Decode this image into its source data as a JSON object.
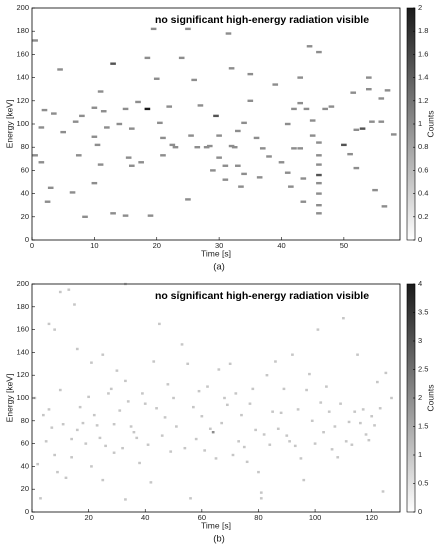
{
  "chart_data": [
    {
      "type": "heatmap",
      "caption": "(a)",
      "annotation": "no significant high-energy radiation visible",
      "xlabel": "Time [s]",
      "ylabel": "Energy [keV]",
      "clabel": "Counts",
      "xlim": [
        0,
        59
      ],
      "xticks": [
        0,
        10,
        20,
        30,
        40,
        50
      ],
      "ylim": [
        0,
        200
      ],
      "yticks": [
        0,
        20,
        40,
        60,
        80,
        100,
        120,
        140,
        160,
        180,
        200
      ],
      "clim": [
        0,
        2
      ],
      "cticks": [
        0,
        0.2,
        0.4,
        0.6,
        0.8,
        1,
        1.2,
        1.4,
        1.6,
        1.8,
        2
      ],
      "colorscale": [
        "#ffffff",
        "#1a1a1a"
      ],
      "x": [
        0.5,
        0.5,
        1.5,
        1.5,
        2,
        2.5,
        3,
        3.5,
        4.5,
        5,
        6.5,
        7,
        7.5,
        8,
        8.5,
        10,
        10,
        10,
        10.5,
        11,
        11,
        11.5,
        12,
        13,
        13,
        14,
        15,
        15,
        15.5,
        16,
        16,
        17,
        17.5,
        18.5,
        18.5,
        19,
        19.5,
        20,
        20.5,
        21,
        21,
        22,
        22.5,
        23,
        24,
        25,
        25,
        25.5,
        26,
        26.5,
        27,
        28,
        28.5,
        29,
        29.5,
        30,
        30,
        31,
        31,
        31.5,
        32,
        32,
        32.5,
        33,
        33,
        33.5,
        34,
        34,
        35,
        35,
        36,
        36.5,
        37,
        38,
        39,
        40,
        41,
        41,
        41.5,
        42,
        42,
        43,
        43,
        43,
        43.5,
        43.5,
        44,
        44.5,
        45,
        45,
        46,
        46,
        46,
        46,
        46,
        46,
        46,
        46,
        46,
        47,
        48,
        50,
        51,
        51.5,
        52,
        52,
        53,
        54,
        54,
        54.5,
        55,
        56,
        56,
        56.5,
        57,
        58
      ],
      "y": [
        172,
        73,
        97,
        67,
        112,
        33,
        45,
        109,
        147,
        93,
        41,
        102,
        73,
        107,
        20,
        114,
        89,
        49,
        82,
        128,
        65,
        111,
        97,
        152,
        23,
        100,
        113,
        21,
        71,
        96,
        64,
        119,
        67,
        113,
        157,
        21,
        182,
        139,
        101,
        88,
        73,
        115,
        82,
        80,
        157,
        182,
        35,
        90,
        138,
        80,
        116,
        80,
        81,
        60,
        107,
        71,
        90,
        64,
        52,
        178,
        148,
        81,
        80,
        94,
        64,
        46,
        101,
        57,
        143,
        120,
        88,
        54,
        79,
        72,
        134,
        67,
        100,
        58,
        46,
        113,
        79,
        118,
        140,
        79,
        53,
        33,
        113,
        167,
        103,
        90,
        162,
        84,
        73,
        65,
        56,
        49,
        40,
        30,
        23,
        113,
        115,
        82,
        74,
        127,
        95,
        62,
        96,
        140,
        130,
        102,
        43,
        122,
        102,
        29,
        129,
        91
      ],
      "values": [
        1,
        1,
        1,
        1,
        1,
        1,
        1,
        1,
        1,
        1,
        1,
        1,
        1,
        1,
        1,
        1,
        1,
        1,
        1,
        1,
        1,
        1,
        1,
        1.5,
        1,
        1,
        1,
        1,
        1,
        1,
        1,
        1,
        1,
        2,
        1,
        1,
        1,
        1,
        1,
        1,
        1,
        1,
        1,
        1,
        1,
        1,
        1,
        1,
        1,
        1,
        1,
        1,
        1,
        1,
        1.5,
        1,
        1,
        1,
        1,
        1,
        1,
        1,
        1,
        1,
        1,
        1,
        1,
        1,
        1,
        1,
        1,
        1,
        1,
        1,
        1,
        1,
        1,
        1,
        1,
        1,
        1,
        1,
        1,
        1,
        1,
        1,
        1,
        1,
        1,
        1,
        1,
        1,
        1,
        1,
        1.5,
        1,
        1,
        1,
        1,
        1,
        1,
        1.5,
        1,
        1,
        1,
        1,
        1.5,
        1,
        1,
        1,
        1,
        1,
        1,
        1,
        1,
        1
      ]
    },
    {
      "type": "heatmap",
      "caption": "(b)",
      "annotation": "no significant high-energy radiation visible",
      "xlabel": "Time [s]",
      "ylabel": "Energy [keV]",
      "clabel": "Counts",
      "xlim": [
        0,
        130
      ],
      "xticks": [
        0,
        20,
        40,
        60,
        80,
        100,
        120
      ],
      "ylim": [
        0,
        200
      ],
      "yticks": [
        0,
        20,
        40,
        60,
        80,
        100,
        120,
        140,
        160,
        180,
        200
      ],
      "clim": [
        0,
        4
      ],
      "cticks": [
        0,
        0.5,
        1,
        1.5,
        2,
        2.5,
        3,
        3.5,
        4
      ],
      "colorscale": [
        "#ffffff",
        "#1a1a1a"
      ],
      "x": [
        1,
        2,
        3,
        4,
        5,
        6,
        6,
        7,
        8,
        8,
        9,
        10,
        10,
        11,
        12,
        13,
        14,
        14,
        15,
        16,
        16,
        17,
        18,
        19,
        20,
        21,
        21,
        22,
        23,
        24,
        25,
        25,
        26,
        27,
        28,
        29,
        29,
        30,
        31,
        32,
        33,
        33,
        33,
        34,
        35,
        36,
        37,
        38,
        39,
        40,
        41,
        42,
        43,
        44,
        45,
        46,
        47,
        48,
        49,
        50,
        51,
        52,
        53,
        54,
        55,
        56,
        57,
        58,
        59,
        60,
        61,
        62,
        63,
        64,
        65,
        66,
        67,
        68,
        69,
        70,
        71,
        72,
        73,
        74,
        75,
        76,
        77,
        78,
        79,
        80,
        81,
        81,
        82,
        83,
        84,
        85,
        86,
        87,
        88,
        89,
        90,
        91,
        92,
        93,
        94,
        95,
        96,
        97,
        98,
        99,
        100,
        101,
        102,
        103,
        104,
        105,
        106,
        107,
        108,
        109,
        110,
        111,
        112,
        113,
        114,
        115,
        116,
        117,
        118,
        119,
        120,
        121,
        122,
        123,
        124,
        125,
        127
      ],
      "y": [
        100,
        42,
        12,
        85,
        62,
        165,
        90,
        74,
        160,
        50,
        35,
        193,
        107,
        77,
        30,
        195,
        64,
        48,
        182,
        143,
        72,
        92,
        78,
        60,
        101,
        131,
        40,
        85,
        76,
        65,
        138,
        28,
        58,
        104,
        108,
        77,
        52,
        124,
        89,
        56,
        200,
        115,
        11,
        97,
        75,
        70,
        65,
        43,
        104,
        95,
        59,
        26,
        132,
        91,
        165,
        67,
        83,
        112,
        53,
        100,
        75,
        193,
        147,
        56,
        130,
        12,
        92,
        64,
        106,
        84,
        54,
        110,
        73,
        70,
        47,
        125,
        78,
        100,
        94,
        130,
        50,
        104,
        62,
        85,
        57,
        44,
        95,
        108,
        72,
        35,
        17,
        12,
        68,
        120,
        59,
        88,
        132,
        73,
        87,
        108,
        67,
        62,
        138,
        58,
        90,
        47,
        28,
        107,
        121,
        80,
        60,
        160,
        96,
        70,
        110,
        88,
        55,
        75,
        48,
        95,
        170,
        62,
        79,
        59,
        88,
        138,
        78,
        90,
        68,
        63,
        84,
        76,
        114,
        91,
        18,
        122,
        100
      ],
      "values": [
        1,
        1,
        1,
        1,
        1,
        1,
        1,
        1,
        1,
        1,
        1,
        1,
        1,
        1,
        1,
        1,
        1,
        1,
        1,
        1,
        1,
        1,
        1,
        1,
        1,
        1,
        1,
        1,
        1,
        1,
        1,
        1,
        1,
        1,
        1,
        1,
        1,
        1,
        1,
        1,
        1,
        1,
        1,
        1,
        1,
        1,
        1,
        1,
        1,
        1,
        1,
        1,
        1,
        1,
        1,
        1,
        1,
        1,
        1,
        1,
        1,
        1,
        1,
        1,
        1,
        1,
        1,
        1,
        1,
        1,
        1,
        1,
        1,
        2,
        1,
        1,
        1,
        1,
        1,
        1,
        1,
        1,
        1,
        1,
        1,
        1,
        1,
        1,
        1,
        1,
        1,
        1,
        1,
        1,
        1,
        1,
        1,
        1,
        1,
        1,
        1,
        1,
        1,
        1,
        1,
        1,
        1,
        1,
        1,
        1,
        1,
        1,
        1,
        1,
        1,
        1,
        1,
        1,
        1,
        1,
        1,
        1,
        1,
        1,
        1,
        1,
        1,
        1,
        1,
        1,
        1,
        1,
        1,
        1,
        1,
        1,
        1
      ]
    }
  ]
}
